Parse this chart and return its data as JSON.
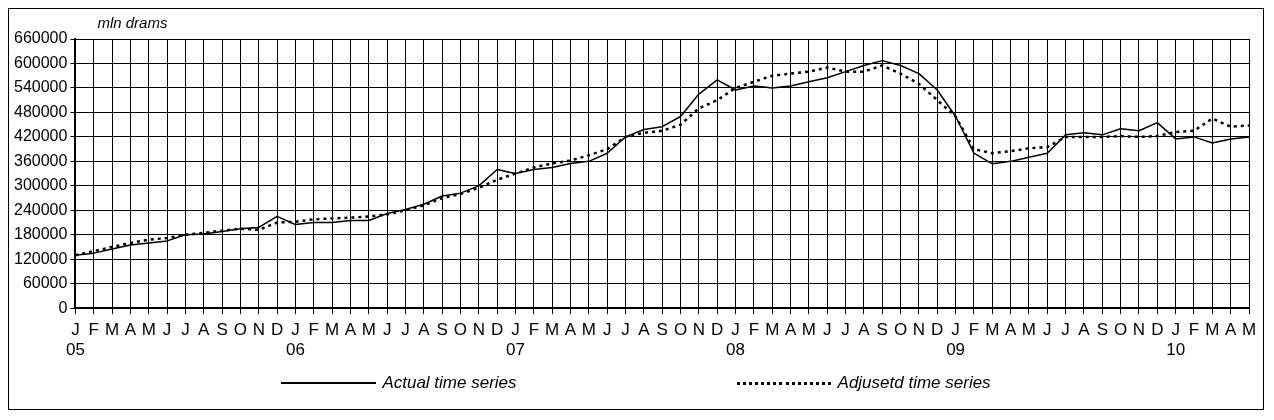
{
  "chart_data": {
    "type": "line",
    "ylabel": "mln drams",
    "categories": [
      "J\n05",
      "F",
      "M",
      "A",
      "M",
      "J",
      "J",
      "A",
      "S",
      "O",
      "N",
      "D",
      "J\n06",
      "F",
      "M",
      "A",
      "M",
      "J",
      "J",
      "A",
      "S",
      "O",
      "N",
      "D",
      "J\n07",
      "F",
      "M",
      "A",
      "M",
      "J",
      "J",
      "A",
      "S",
      "O",
      "N",
      "D",
      "J\n08",
      "F",
      "M",
      "A",
      "M",
      "J",
      "J",
      "A",
      "S",
      "O",
      "N",
      "D",
      "J\n09",
      "F",
      "M",
      "A",
      "M",
      "J",
      "J",
      "A",
      "S",
      "O",
      "N",
      "D",
      "J\n10",
      "F",
      "M",
      "A",
      "M"
    ],
    "series": [
      {
        "name": "Actual time series",
        "color": "#000000",
        "line_style": "solid",
        "values": [
          130000,
          135000,
          145000,
          155000,
          160000,
          165000,
          180000,
          182000,
          188000,
          195000,
          198000,
          225000,
          205000,
          210000,
          210000,
          215000,
          215000,
          232000,
          242000,
          255000,
          275000,
          282000,
          300000,
          340000,
          330000,
          340000,
          345000,
          355000,
          360000,
          380000,
          420000,
          438000,
          445000,
          470000,
          525000,
          560000,
          535000,
          545000,
          540000,
          545000,
          555000,
          565000,
          580000,
          595000,
          607000,
          595000,
          575000,
          535000,
          470000,
          380000,
          354000,
          360000,
          370000,
          380000,
          425000,
          430000,
          425000,
          440000,
          435000,
          455000,
          415000,
          420000,
          405000,
          415000,
          420000
        ]
      },
      {
        "name": "Adjusetd time series",
        "color": "#000000",
        "line_style": "dotted",
        "values": [
          130000,
          140000,
          150000,
          160000,
          168000,
          172000,
          180000,
          185000,
          190000,
          195000,
          192000,
          210000,
          212000,
          218000,
          220000,
          222000,
          225000,
          230000,
          240000,
          252000,
          270000,
          280000,
          295000,
          315000,
          330000,
          345000,
          355000,
          362000,
          375000,
          390000,
          420000,
          430000,
          435000,
          450000,
          490000,
          510000,
          540000,
          555000,
          570000,
          575000,
          580000,
          590000,
          580000,
          580000,
          595000,
          575000,
          550000,
          510000,
          470000,
          390000,
          380000,
          385000,
          392000,
          395000,
          420000,
          420000,
          420000,
          422000,
          420000,
          422000,
          432000,
          435000,
          465000,
          445000,
          448000
        ]
      }
    ],
    "ylim": [
      0,
      660000
    ],
    "yticks": [
      0,
      60000,
      120000,
      180000,
      240000,
      300000,
      360000,
      420000,
      480000,
      540000,
      600000,
      660000
    ],
    "grid": true,
    "legend": "bottom",
    "marker": "none"
  }
}
